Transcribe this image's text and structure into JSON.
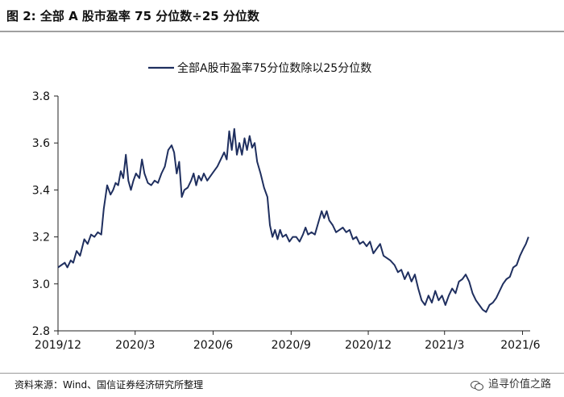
{
  "figure_title": "图 2:  全部 A 股市盈率 75 分位数÷25 分位数",
  "source": "资料来源：Wind、国信证券经济研究所整理",
  "watermark": "追寻价值之路",
  "colors": {
    "line": "#1f2f5f",
    "axis": "#222222",
    "rule": "#a0a0a0"
  },
  "chart_data": {
    "type": "line",
    "title": "",
    "xlabel": "",
    "ylabel": "",
    "legend_position": "top-center",
    "grid": false,
    "ylim": [
      2.8,
      3.8
    ],
    "yticks": [
      "2.8",
      "3.0",
      "3.2",
      "3.4",
      "3.6",
      "3.8"
    ],
    "xlim": [
      "2019-12-01",
      "2021-06-10"
    ],
    "xticks": [
      {
        "date": "2019-12-01",
        "label": "2019/12"
      },
      {
        "date": "2020-03-01",
        "label": "2020/3"
      },
      {
        "date": "2020-06-01",
        "label": "2020/6"
      },
      {
        "date": "2020-09-01",
        "label": "2020/9"
      },
      {
        "date": "2020-12-01",
        "label": "2020/12"
      },
      {
        "date": "2021-03-01",
        "label": "2021/3"
      },
      {
        "date": "2021-06-01",
        "label": "2021/6"
      }
    ],
    "series": [
      {
        "name": "全部A股市盈率75分位数除以25分位数",
        "points": [
          [
            "2019-12-01",
            3.07
          ],
          [
            "2019-12-05",
            3.08
          ],
          [
            "2019-12-09",
            3.09
          ],
          [
            "2019-12-12",
            3.07
          ],
          [
            "2019-12-16",
            3.1
          ],
          [
            "2019-12-19",
            3.09
          ],
          [
            "2019-12-23",
            3.14
          ],
          [
            "2019-12-27",
            3.12
          ],
          [
            "2020-01-01",
            3.19
          ],
          [
            "2020-01-05",
            3.17
          ],
          [
            "2020-01-09",
            3.21
          ],
          [
            "2020-01-13",
            3.2
          ],
          [
            "2020-01-17",
            3.22
          ],
          [
            "2020-01-21",
            3.21
          ],
          [
            "2020-01-24",
            3.32
          ],
          [
            "2020-01-28",
            3.42
          ],
          [
            "2020-02-01",
            3.38
          ],
          [
            "2020-02-04",
            3.4
          ],
          [
            "2020-02-07",
            3.43
          ],
          [
            "2020-02-10",
            3.42
          ],
          [
            "2020-02-13",
            3.48
          ],
          [
            "2020-02-16",
            3.45
          ],
          [
            "2020-02-19",
            3.55
          ],
          [
            "2020-02-22",
            3.44
          ],
          [
            "2020-02-25",
            3.4
          ],
          [
            "2020-02-28",
            3.44
          ],
          [
            "2020-03-02",
            3.47
          ],
          [
            "2020-03-06",
            3.45
          ],
          [
            "2020-03-09",
            3.53
          ],
          [
            "2020-03-12",
            3.47
          ],
          [
            "2020-03-16",
            3.43
          ],
          [
            "2020-03-20",
            3.42
          ],
          [
            "2020-03-24",
            3.44
          ],
          [
            "2020-03-28",
            3.43
          ],
          [
            "2020-04-01",
            3.47
          ],
          [
            "2020-04-05",
            3.5
          ],
          [
            "2020-04-09",
            3.57
          ],
          [
            "2020-04-13",
            3.59
          ],
          [
            "2020-04-16",
            3.56
          ],
          [
            "2020-04-19",
            3.47
          ],
          [
            "2020-04-22",
            3.52
          ],
          [
            "2020-04-25",
            3.37
          ],
          [
            "2020-04-28",
            3.4
          ],
          [
            "2020-05-02",
            3.41
          ],
          [
            "2020-05-06",
            3.44
          ],
          [
            "2020-05-09",
            3.47
          ],
          [
            "2020-05-12",
            3.42
          ],
          [
            "2020-05-15",
            3.46
          ],
          [
            "2020-05-18",
            3.44
          ],
          [
            "2020-05-21",
            3.47
          ],
          [
            "2020-05-25",
            3.44
          ],
          [
            "2020-05-29",
            3.46
          ],
          [
            "2020-06-02",
            3.48
          ],
          [
            "2020-06-06",
            3.5
          ],
          [
            "2020-06-10",
            3.53
          ],
          [
            "2020-06-14",
            3.56
          ],
          [
            "2020-06-17",
            3.53
          ],
          [
            "2020-06-20",
            3.65
          ],
          [
            "2020-06-23",
            3.57
          ],
          [
            "2020-06-26",
            3.66
          ],
          [
            "2020-06-29",
            3.55
          ],
          [
            "2020-07-02",
            3.6
          ],
          [
            "2020-07-05",
            3.55
          ],
          [
            "2020-07-08",
            3.62
          ],
          [
            "2020-07-11",
            3.57
          ],
          [
            "2020-07-14",
            3.63
          ],
          [
            "2020-07-17",
            3.58
          ],
          [
            "2020-07-20",
            3.6
          ],
          [
            "2020-07-23",
            3.52
          ],
          [
            "2020-07-27",
            3.47
          ],
          [
            "2020-07-31",
            3.41
          ],
          [
            "2020-08-04",
            3.37
          ],
          [
            "2020-08-07",
            3.25
          ],
          [
            "2020-08-10",
            3.2
          ],
          [
            "2020-08-13",
            3.23
          ],
          [
            "2020-08-16",
            3.19
          ],
          [
            "2020-08-19",
            3.23
          ],
          [
            "2020-08-22",
            3.2
          ],
          [
            "2020-08-26",
            3.21
          ],
          [
            "2020-08-30",
            3.18
          ],
          [
            "2020-09-03",
            3.2
          ],
          [
            "2020-09-07",
            3.2
          ],
          [
            "2020-09-11",
            3.18
          ],
          [
            "2020-09-15",
            3.21
          ],
          [
            "2020-09-18",
            3.24
          ],
          [
            "2020-09-21",
            3.21
          ],
          [
            "2020-09-25",
            3.22
          ],
          [
            "2020-09-29",
            3.21
          ],
          [
            "2020-10-03",
            3.26
          ],
          [
            "2020-10-07",
            3.31
          ],
          [
            "2020-10-10",
            3.28
          ],
          [
            "2020-10-13",
            3.31
          ],
          [
            "2020-10-16",
            3.27
          ],
          [
            "2020-10-20",
            3.25
          ],
          [
            "2020-10-24",
            3.22
          ],
          [
            "2020-10-28",
            3.23
          ],
          [
            "2020-11-01",
            3.24
          ],
          [
            "2020-11-05",
            3.22
          ],
          [
            "2020-11-09",
            3.23
          ],
          [
            "2020-11-13",
            3.19
          ],
          [
            "2020-11-17",
            3.2
          ],
          [
            "2020-11-21",
            3.17
          ],
          [
            "2020-11-25",
            3.18
          ],
          [
            "2020-11-29",
            3.16
          ],
          [
            "2020-12-03",
            3.18
          ],
          [
            "2020-12-07",
            3.13
          ],
          [
            "2020-12-11",
            3.15
          ],
          [
            "2020-12-15",
            3.17
          ],
          [
            "2020-12-19",
            3.12
          ],
          [
            "2020-12-23",
            3.11
          ],
          [
            "2020-12-27",
            3.1
          ],
          [
            "2021-01-01",
            3.08
          ],
          [
            "2021-01-05",
            3.05
          ],
          [
            "2021-01-09",
            3.06
          ],
          [
            "2021-01-13",
            3.02
          ],
          [
            "2021-01-17",
            3.05
          ],
          [
            "2021-01-21",
            3.01
          ],
          [
            "2021-01-25",
            3.04
          ],
          [
            "2021-01-29",
            2.98
          ],
          [
            "2021-02-02",
            2.93
          ],
          [
            "2021-02-06",
            2.91
          ],
          [
            "2021-02-10",
            2.95
          ],
          [
            "2021-02-14",
            2.92
          ],
          [
            "2021-02-18",
            2.97
          ],
          [
            "2021-02-22",
            2.93
          ],
          [
            "2021-02-26",
            2.95
          ],
          [
            "2021-03-02",
            2.91
          ],
          [
            "2021-03-06",
            2.95
          ],
          [
            "2021-03-10",
            2.98
          ],
          [
            "2021-03-14",
            2.96
          ],
          [
            "2021-03-18",
            3.01
          ],
          [
            "2021-03-22",
            3.02
          ],
          [
            "2021-03-26",
            3.04
          ],
          [
            "2021-03-30",
            3.01
          ],
          [
            "2021-04-03",
            2.96
          ],
          [
            "2021-04-07",
            2.93
          ],
          [
            "2021-04-11",
            2.91
          ],
          [
            "2021-04-15",
            2.89
          ],
          [
            "2021-04-19",
            2.88
          ],
          [
            "2021-04-23",
            2.91
          ],
          [
            "2021-04-27",
            2.92
          ],
          [
            "2021-05-01",
            2.94
          ],
          [
            "2021-05-05",
            2.97
          ],
          [
            "2021-05-09",
            3.0
          ],
          [
            "2021-05-13",
            3.02
          ],
          [
            "2021-05-17",
            3.03
          ],
          [
            "2021-05-21",
            3.07
          ],
          [
            "2021-05-25",
            3.08
          ],
          [
            "2021-05-29",
            3.12
          ],
          [
            "2021-06-02",
            3.15
          ],
          [
            "2021-06-05",
            3.17
          ],
          [
            "2021-06-08",
            3.2
          ]
        ]
      }
    ]
  }
}
